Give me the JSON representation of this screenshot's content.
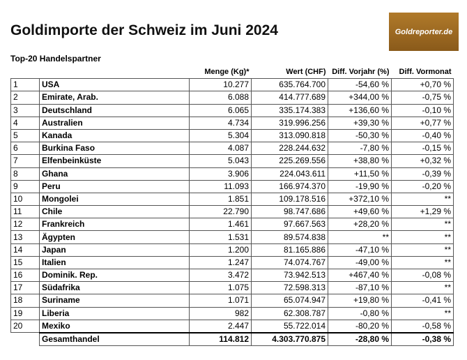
{
  "header": {
    "title": "Goldimporte der Schweiz im Juni 2024",
    "logo": "Goldreporter.de",
    "subtitle": "Top-20 Handelspartner"
  },
  "table": {
    "columns": [
      "Menge (Kg)*",
      "Wert (CHF)",
      "Diff. Vorjahr (%)",
      "Diff. Vormonat"
    ],
    "rows": [
      [
        "1",
        "USA",
        "10.277",
        "635.764.700",
        "-54,60 %",
        "+0,70 %"
      ],
      [
        "2",
        "Emirate, Arab.",
        "6.088",
        "414.777.689",
        "+344,00 %",
        "-0,75 %"
      ],
      [
        "3",
        "Deutschland",
        "6.065",
        "335.174.383",
        "+136,60 %",
        "-0,10 %"
      ],
      [
        "4",
        "Australien",
        "4.734",
        "319.996.256",
        "+39,30 %",
        "+0,77 %"
      ],
      [
        "5",
        "Kanada",
        "5.304",
        "313.090.818",
        "-50,30 %",
        "-0,40 %"
      ],
      [
        "6",
        "Burkina Faso",
        "4.087",
        "228.244.632",
        "-7,80 %",
        "-0,15 %"
      ],
      [
        "7",
        "Elfenbeinküste",
        "5.043",
        "225.269.556",
        "+38,80 %",
        "+0,32 %"
      ],
      [
        "8",
        "Ghana",
        "3.906",
        "224.043.611",
        "+11,50 %",
        "-0,39 %"
      ],
      [
        "9",
        "Peru",
        "11.093",
        "166.974.370",
        "-19,90 %",
        "-0,20 %"
      ],
      [
        "10",
        "Mongolei",
        "1.851",
        "109.178.516",
        "+372,10 %",
        "**"
      ],
      [
        "11",
        "Chile",
        "22.790",
        "98.747.686",
        "+49,60 %",
        "+1,29 %"
      ],
      [
        "12",
        "Frankreich",
        "1.461",
        "97.667.563",
        "+28,20 %",
        "**"
      ],
      [
        "13",
        "Ägypten",
        "1.531",
        "89.574.838",
        "**",
        "**"
      ],
      [
        "14",
        "Japan",
        "1.200",
        "81.165.886",
        "-47,10 %",
        "**"
      ],
      [
        "15",
        "Italien",
        "1.247",
        "74.074.767",
        "-49,00 %",
        "**"
      ],
      [
        "16",
        "Dominik. Rep.",
        "3.472",
        "73.942.513",
        "+467,40 %",
        "-0,08 %"
      ],
      [
        "17",
        "Südafrika",
        "1.075",
        "72.598.313",
        "-87,10 %",
        "**"
      ],
      [
        "18",
        "Suriname",
        "1.071",
        "65.074.947",
        "+19,80 %",
        "-0,41 %"
      ],
      [
        "19",
        "Liberia",
        "982",
        "62.308.787",
        "-0,80 %",
        "**"
      ],
      [
        "20",
        "Mexiko",
        "2.447",
        "55.722.014",
        "-80,20 %",
        "-0,58 %"
      ]
    ],
    "total": [
      "Gesamthandel",
      "114.812",
      "4.303.770.875",
      "-28,80 %",
      "-0,38 %"
    ]
  }
}
